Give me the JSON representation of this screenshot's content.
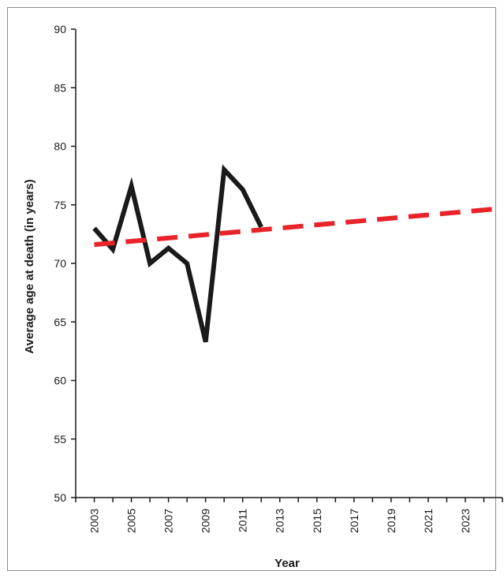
{
  "chart_data": {
    "type": "line",
    "xlabel": "Year",
    "ylabel": "Average age at death (in years)",
    "ylim": [
      50,
      90
    ],
    "yticks": [
      50,
      55,
      60,
      65,
      70,
      75,
      80,
      85,
      90
    ],
    "x_tick_labels": [
      "2003",
      "2005",
      "2007",
      "2009",
      "2011",
      "2013",
      "2015",
      "2017",
      "2019",
      "2021",
      "2023"
    ],
    "xlim": [
      2002,
      2025
    ],
    "grid": false,
    "series": [
      {
        "style": "solid",
        "color": "#1a1a1a",
        "points": [
          {
            "x": 2003,
            "y": 73.0
          },
          {
            "x": 2004,
            "y": 71.2
          },
          {
            "x": 2005,
            "y": 76.6
          },
          {
            "x": 2006,
            "y": 70.0
          },
          {
            "x": 2007,
            "y": 71.3
          },
          {
            "x": 2008,
            "y": 70.0
          },
          {
            "x": 2009,
            "y": 63.3
          },
          {
            "x": 2010,
            "y": 78.0
          },
          {
            "x": 2011,
            "y": 76.3
          },
          {
            "x": 2012,
            "y": 73.1
          }
        ]
      },
      {
        "style": "dashed",
        "color": "#e8232a",
        "points": [
          {
            "x": 2003,
            "y": 71.6
          },
          {
            "x": 2025,
            "y": 74.7
          }
        ]
      }
    ]
  }
}
